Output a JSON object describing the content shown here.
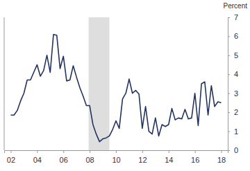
{
  "chart_data": {
    "type": "line",
    "y_label": "Percent",
    "color": "#23335f",
    "x": [
      2002,
      2002.25,
      2002.5,
      2002.75,
      2003,
      2003.25,
      2003.5,
      2003.75,
      2004,
      2004.25,
      2004.5,
      2004.75,
      2005,
      2005.25,
      2005.5,
      2005.75,
      2006,
      2006.25,
      2006.5,
      2006.75,
      2007,
      2007.25,
      2007.5,
      2007.75,
      2008,
      2008.25,
      2008.5,
      2008.75,
      2009,
      2009.25,
      2009.5,
      2009.75,
      2010,
      2010.25,
      2010.5,
      2010.75,
      2011,
      2011.25,
      2011.5,
      2011.75,
      2012,
      2012.25,
      2012.5,
      2012.75,
      2013,
      2013.25,
      2013.5,
      2013.75,
      2014,
      2014.25,
      2014.5,
      2014.75,
      2015,
      2015.25,
      2015.5,
      2015.75,
      2016,
      2016.25,
      2016.5,
      2016.75,
      2017,
      2017.25,
      2017.5,
      2017.75,
      2018
    ],
    "values": [
      1.85,
      1.85,
      2.1,
      2.6,
      3.0,
      3.7,
      3.7,
      4.1,
      4.5,
      3.9,
      4.2,
      5.0,
      4.1,
      6.1,
      6.05,
      4.3,
      4.95,
      3.65,
      3.7,
      4.45,
      3.85,
      3.3,
      2.85,
      2.35,
      2.35,
      1.35,
      0.85,
      0.45,
      0.6,
      0.65,
      0.75,
      1.1,
      1.55,
      1.15,
      2.7,
      3.0,
      3.75,
      3.0,
      3.15,
      2.95,
      1.15,
      2.3,
      1.0,
      0.85,
      1.7,
      0.75,
      1.35,
      1.25,
      1.35,
      2.2,
      1.6,
      1.7,
      1.65,
      2.15,
      1.65,
      1.7,
      3.0,
      1.3,
      3.5,
      3.6,
      1.85,
      3.4,
      2.3,
      2.55,
      2.5
    ],
    "shaded_ranges": [
      [
        2007.92,
        2009.5
      ]
    ],
    "xlim": [
      2001.5,
      2018.5
    ],
    "xticks": [
      {
        "value": 2002,
        "label": "02"
      },
      {
        "value": 2004,
        "label": "04"
      },
      {
        "value": 2006,
        "label": "06"
      },
      {
        "value": 2008,
        "label": "08"
      },
      {
        "value": 2010,
        "label": "10"
      },
      {
        "value": 2012,
        "label": "12"
      },
      {
        "value": 2014,
        "label": "14"
      },
      {
        "value": 2016,
        "label": "16"
      },
      {
        "value": 2018,
        "label": "18"
      }
    ],
    "ylim": [
      0,
      7
    ],
    "yticks": [
      0,
      1,
      2,
      3,
      4,
      5,
      6,
      7
    ],
    "grid": false
  }
}
